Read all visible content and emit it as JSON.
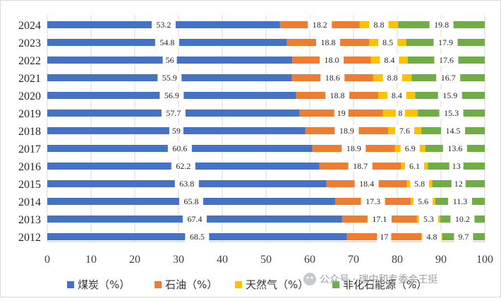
{
  "chart_data": {
    "type": "bar",
    "stacked": true,
    "orientation": "horizontal",
    "categories": [
      "2024",
      "2023",
      "2022",
      "2021",
      "2020",
      "2019",
      "2018",
      "2017",
      "2016",
      "2015",
      "2014",
      "2013",
      "2012"
    ],
    "series": [
      {
        "name": "煤炭（%）",
        "color": "#4472c4",
        "values": [
          53.2,
          54.8,
          56,
          55.9,
          56.9,
          57.7,
          59,
          60.6,
          62.2,
          63.8,
          65.8,
          67.4,
          68.5
        ]
      },
      {
        "name": "石油（%）",
        "color": "#ed7d31",
        "values": [
          18.2,
          18.8,
          18.0,
          18.6,
          18.8,
          19,
          18.9,
          18.9,
          18.7,
          18.4,
          17.3,
          17.1,
          17
        ]
      },
      {
        "name": "天然气（%）",
        "color": "#ffc000",
        "values": [
          8.8,
          8.5,
          8.4,
          8.8,
          8.4,
          8,
          7.6,
          6.9,
          6.1,
          5.8,
          5.6,
          5.3,
          4.8
        ]
      },
      {
        "name": "非化石能源（%）",
        "color": "#70ad47",
        "values": [
          19.8,
          17.9,
          17.6,
          16.7,
          15.9,
          15.3,
          14.5,
          13.6,
          13,
          12,
          11.3,
          10.2,
          9.7
        ]
      }
    ],
    "value_labels": [
      [
        "53.2",
        "54.8",
        "56",
        "55.9",
        "56.9",
        "57.7",
        "59",
        "60.6",
        "62.2",
        "63.8",
        "65.8",
        "67.4",
        "68.5"
      ],
      [
        "18.2",
        "18.8",
        "18.0",
        "18.6",
        "18.8",
        "19",
        "18.9",
        "18.9",
        "18.7",
        "18.4",
        "17.3",
        "17.1",
        "17"
      ],
      [
        "8.8",
        "8.5",
        "8.4",
        "8.8",
        "8.4",
        "8",
        "7.6",
        "6.9",
        "6.1",
        "5.8",
        "5.6",
        "5.3",
        "4.8"
      ],
      [
        "19.8",
        "17.9",
        "17.6",
        "16.7",
        "15.9",
        "15.3",
        "14.5",
        "13.6",
        "13",
        "12",
        "11.3",
        "10.2",
        "9.7"
      ]
    ],
    "xlim": [
      0,
      100
    ],
    "xticks": [
      "0",
      "10",
      "20",
      "30",
      "40",
      "50",
      "60",
      "70",
      "80",
      "90",
      "100"
    ],
    "grid": true,
    "legend_position": "bottom"
  },
  "watermark": "公众号 · 瑞中和专委会王挺"
}
